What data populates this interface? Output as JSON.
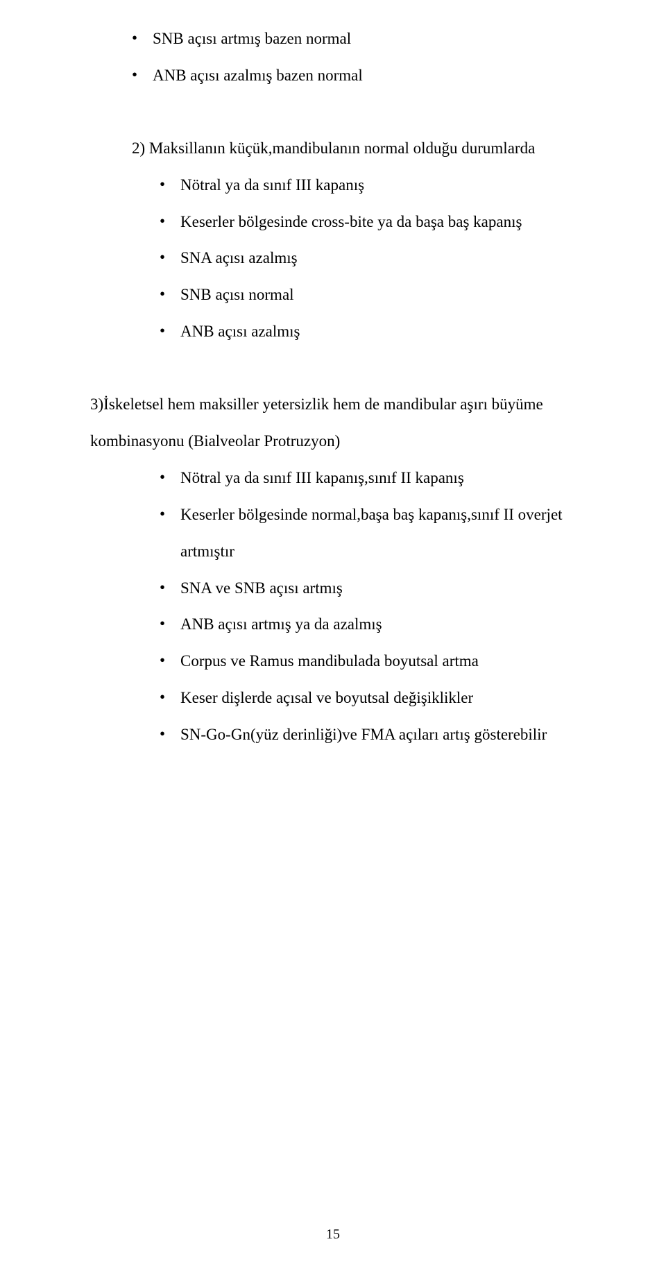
{
  "top_bullets": [
    "SNB açısı artmış bazen normal",
    "ANB açısı azalmış bazen normal"
  ],
  "section2": {
    "heading": "2)  Maksillanın küçük,mandibulanın normal olduğu durumlarda",
    "bullets": [
      "Nötral ya da sınıf III kapanış",
      "Keserler bölgesinde cross-bite ya da başa baş kapanış",
      "SNA açısı azalmış",
      "SNB açısı normal",
      "ANB açısı azalmış"
    ]
  },
  "section3": {
    "heading_line1": "3)İskeletsel hem maksiller yetersizlik hem de mandibular aşırı büyüme",
    "heading_line2": "kombinasyonu (Bialveolar Protruzyon)",
    "bullets": [
      "Nötral ya da sınıf III kapanış,sınıf  II kapanış",
      "Keserler bölgesinde normal,başa baş kapanış,sınıf II overjet artmıştır",
      "SNA ve SNB açısı artmış",
      "ANB açısı artmış ya da azalmış",
      "Corpus  ve Ramus mandibulada boyutsal artma",
      "Keser dişlerde açısal ve boyutsal değişiklikler",
      "SN-Go-Gn(yüz derinliği)ve FMA açıları artış gösterebilir"
    ]
  },
  "page_number": "15"
}
